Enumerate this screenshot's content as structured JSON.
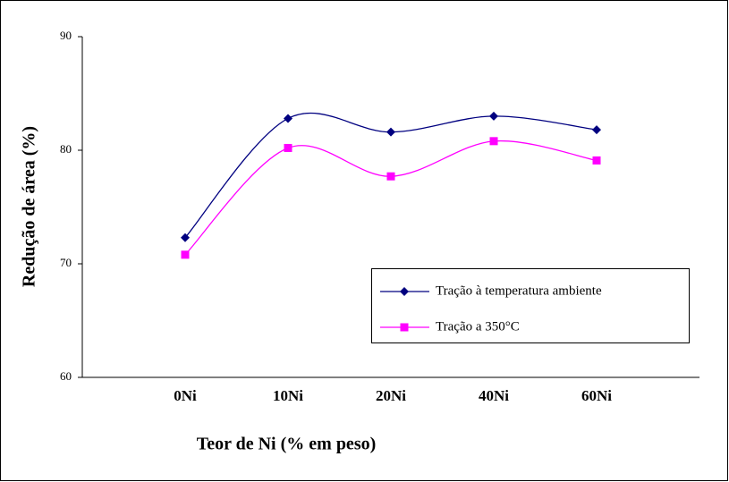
{
  "chart_data": {
    "type": "line",
    "x_label": "Teor de Ni (% em peso)",
    "y_label": "Redução de área (%)",
    "categories": [
      "0Ni",
      "10Ni",
      "20Ni",
      "40Ni",
      "60Ni"
    ],
    "series": [
      {
        "name": "Tração à temperatura ambiente",
        "color": "#000080",
        "marker": "diamond",
        "values": [
          72.3,
          82.8,
          81.6,
          83.0,
          81.8
        ]
      },
      {
        "name": "Tração a 350°C",
        "color": "#ff00ff",
        "marker": "square",
        "values": [
          70.8,
          80.2,
          77.7,
          80.8,
          79.1
        ]
      }
    ],
    "ylim": [
      60,
      90
    ],
    "yticks": [
      60,
      70,
      80,
      90
    ],
    "smooth": true,
    "grid": false
  }
}
